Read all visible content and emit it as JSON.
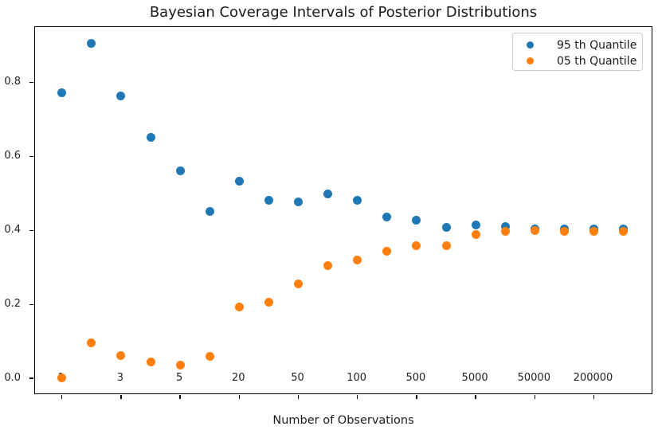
{
  "title": "Bayesian Coverage Intervals of Posterior Distributions",
  "xlabel": "Number of Observations",
  "legend": [
    {
      "label": "95 th Quantile",
      "color": "#1f77b4"
    },
    {
      "label": "05 th Quantile",
      "color": "#ff7f0e"
    }
  ],
  "chart_data": {
    "type": "scatter",
    "title": "Bayesian Coverage Intervals of Posterior Distributions",
    "xlabel": "Number of Observations",
    "ylabel": "",
    "grid": false,
    "legend_position": "upper right",
    "n_points": 20,
    "x_axis_kind": "categorical-evenly-spaced, labels on every second point",
    "x_ticks": [
      {
        "index": 0,
        "label": "1"
      },
      {
        "index": 2,
        "label": "3"
      },
      {
        "index": 4,
        "label": "5"
      },
      {
        "index": 6,
        "label": "20"
      },
      {
        "index": 8,
        "label": "50"
      },
      {
        "index": 10,
        "label": "100"
      },
      {
        "index": 12,
        "label": "500"
      },
      {
        "index": 14,
        "label": "5000"
      },
      {
        "index": 16,
        "label": "50000"
      },
      {
        "index": 18,
        "label": "200000"
      }
    ],
    "y_ticks": [
      {
        "value": 0.0,
        "label": "0.0"
      },
      {
        "value": 0.2,
        "label": "0.2"
      },
      {
        "value": 0.4,
        "label": "0.4"
      },
      {
        "value": 0.6,
        "label": "0.6"
      },
      {
        "value": 0.8,
        "label": "0.8"
      }
    ],
    "ylim": [
      -0.045,
      0.95
    ],
    "series": [
      {
        "name": "95 th Quantile",
        "color": "#1f77b4",
        "values": [
          0.772,
          0.905,
          0.764,
          0.652,
          0.562,
          0.451,
          0.533,
          0.482,
          0.477,
          0.498,
          0.481,
          0.436,
          0.428,
          0.408,
          0.414,
          0.41,
          0.404,
          0.403,
          0.403,
          0.404
        ]
      },
      {
        "name": "05 th Quantile",
        "color": "#ff7f0e",
        "values": [
          0.001,
          0.095,
          0.062,
          0.045,
          0.036,
          0.059,
          0.194,
          0.205,
          0.255,
          0.305,
          0.321,
          0.343,
          0.359,
          0.358,
          0.39,
          0.397,
          0.399,
          0.397,
          0.397,
          0.397
        ]
      }
    ]
  }
}
